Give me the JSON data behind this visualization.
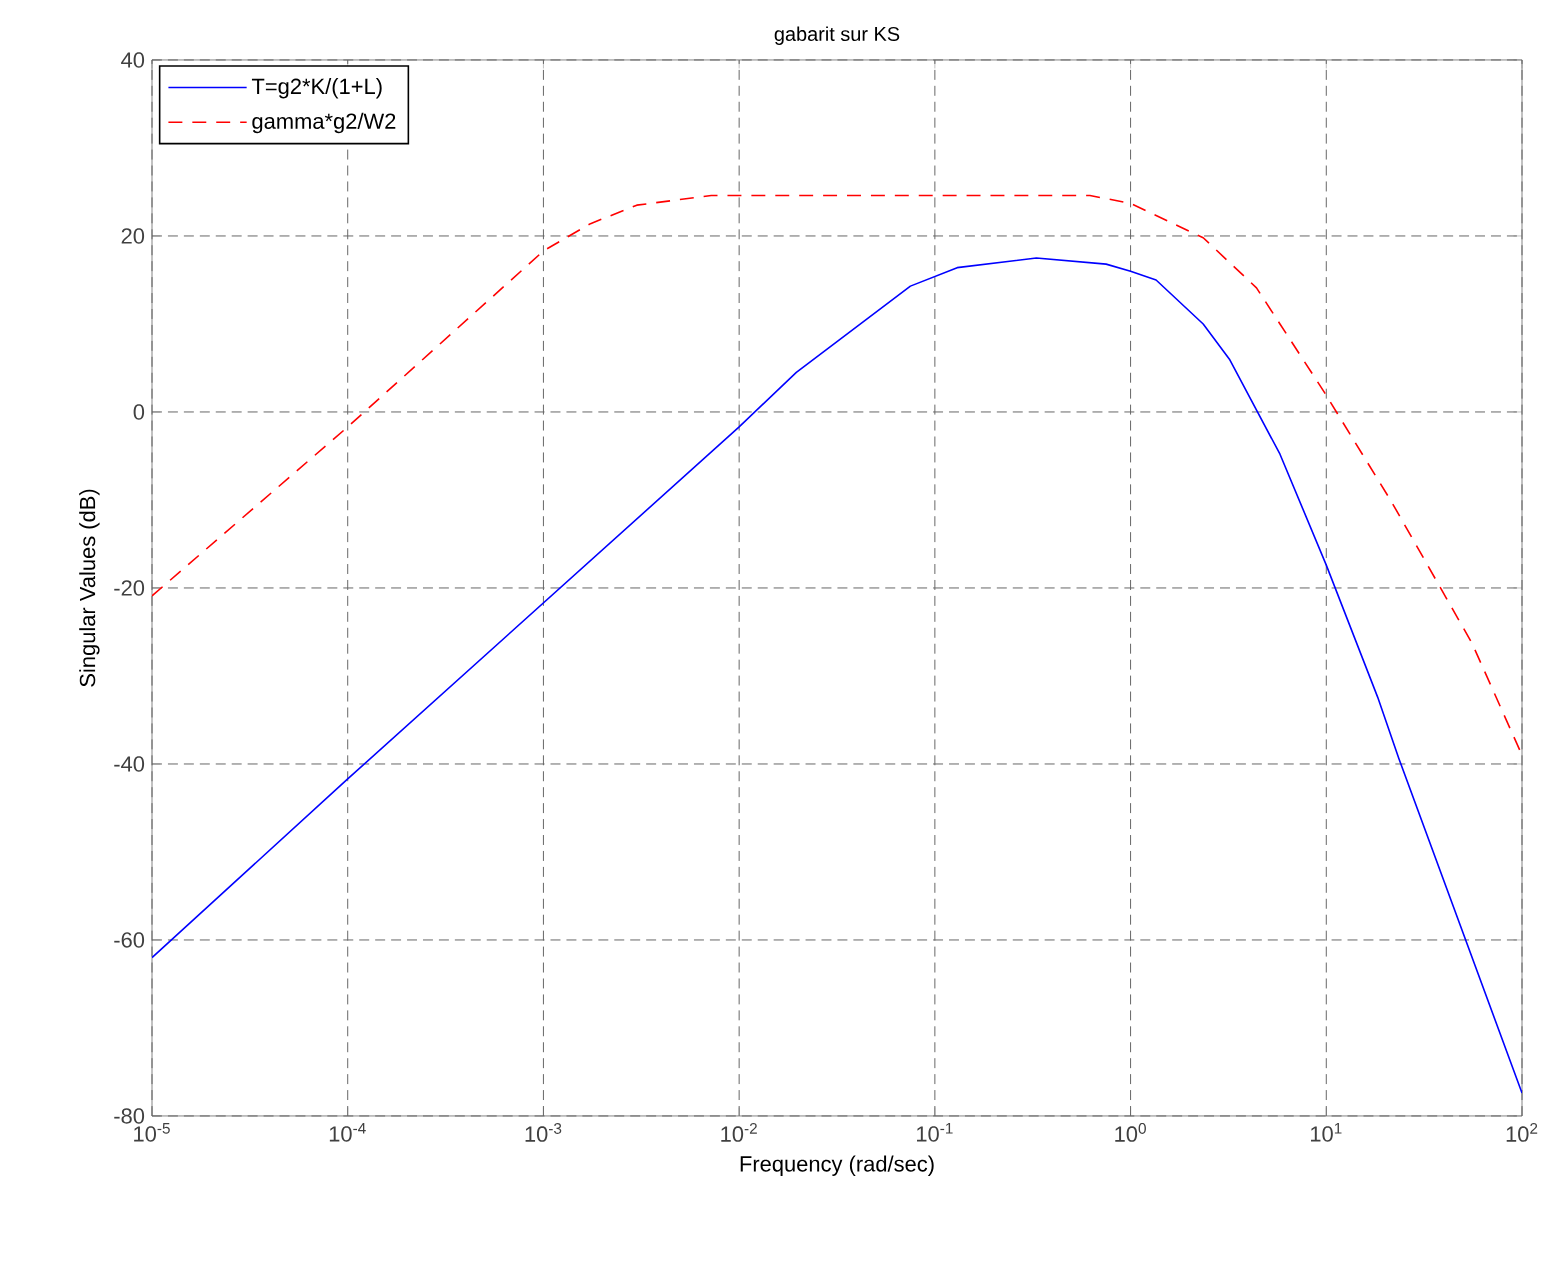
{
  "chart_data": {
    "type": "line",
    "title": "gabarit sur KS",
    "xlabel": "Frequency (rad/sec)",
    "ylabel": "Singular Values (dB)",
    "log": "x",
    "grid": true,
    "legend": "top left",
    "xlim": [
      1e-05,
      100
    ],
    "ylim": [
      -80,
      40
    ],
    "xticks": [
      {
        "value": 1e-05,
        "label": "10$^{-5}$"
      },
      {
        "value": 0.0001,
        "label": "10$^{-4}$"
      },
      {
        "value": 0.001,
        "label": "10$^{-3}$"
      },
      {
        "value": 0.01,
        "label": "10$^{-2}$"
      },
      {
        "value": 0.1,
        "label": "10$^{-1}$"
      },
      {
        "value": 1,
        "label": "10$^{0}$"
      },
      {
        "value": 10,
        "label": "10$^{1}$"
      },
      {
        "value": 100,
        "label": "10$^{2}$"
      }
    ],
    "yticks": [
      -80,
      -60,
      -40,
      -20,
      0,
      20,
      40
    ],
    "series": [
      {
        "name": "T=g2*K/(1+L)",
        "color": "#0000ff",
        "line_style": "solid",
        "x": [
          1e-05,
          0.0001,
          0.001,
          0.01,
          0.0196,
          0.075,
          0.13,
          0.33,
          0.75,
          1,
          1.35,
          2.35,
          3.2,
          5.8,
          10,
          18.3,
          23.5,
          100
        ],
        "values": [
          -62,
          -41.7,
          -21.7,
          -1.7,
          4.5,
          14.3,
          16.4,
          17.5,
          16.8,
          16,
          15,
          10,
          6,
          -4.8,
          -17.4,
          -32.4,
          -39.4,
          -77.4
        ]
      },
      {
        "name": "gamma*g2/W2",
        "color": "#ff0000",
        "line_style": "dashed",
        "x": [
          1e-05,
          0.0001,
          0.001,
          0.00174,
          0.003,
          0.0072,
          0.62,
          1,
          2.35,
          4.4,
          9.8,
          21.4,
          55.6,
          100
        ],
        "values": [
          -20.9,
          -1.7,
          18.3,
          21.4,
          23.5,
          24.6,
          24.6,
          23.7,
          19.8,
          14.1,
          2.2,
          -10.1,
          -26.3,
          -39
        ]
      }
    ]
  }
}
